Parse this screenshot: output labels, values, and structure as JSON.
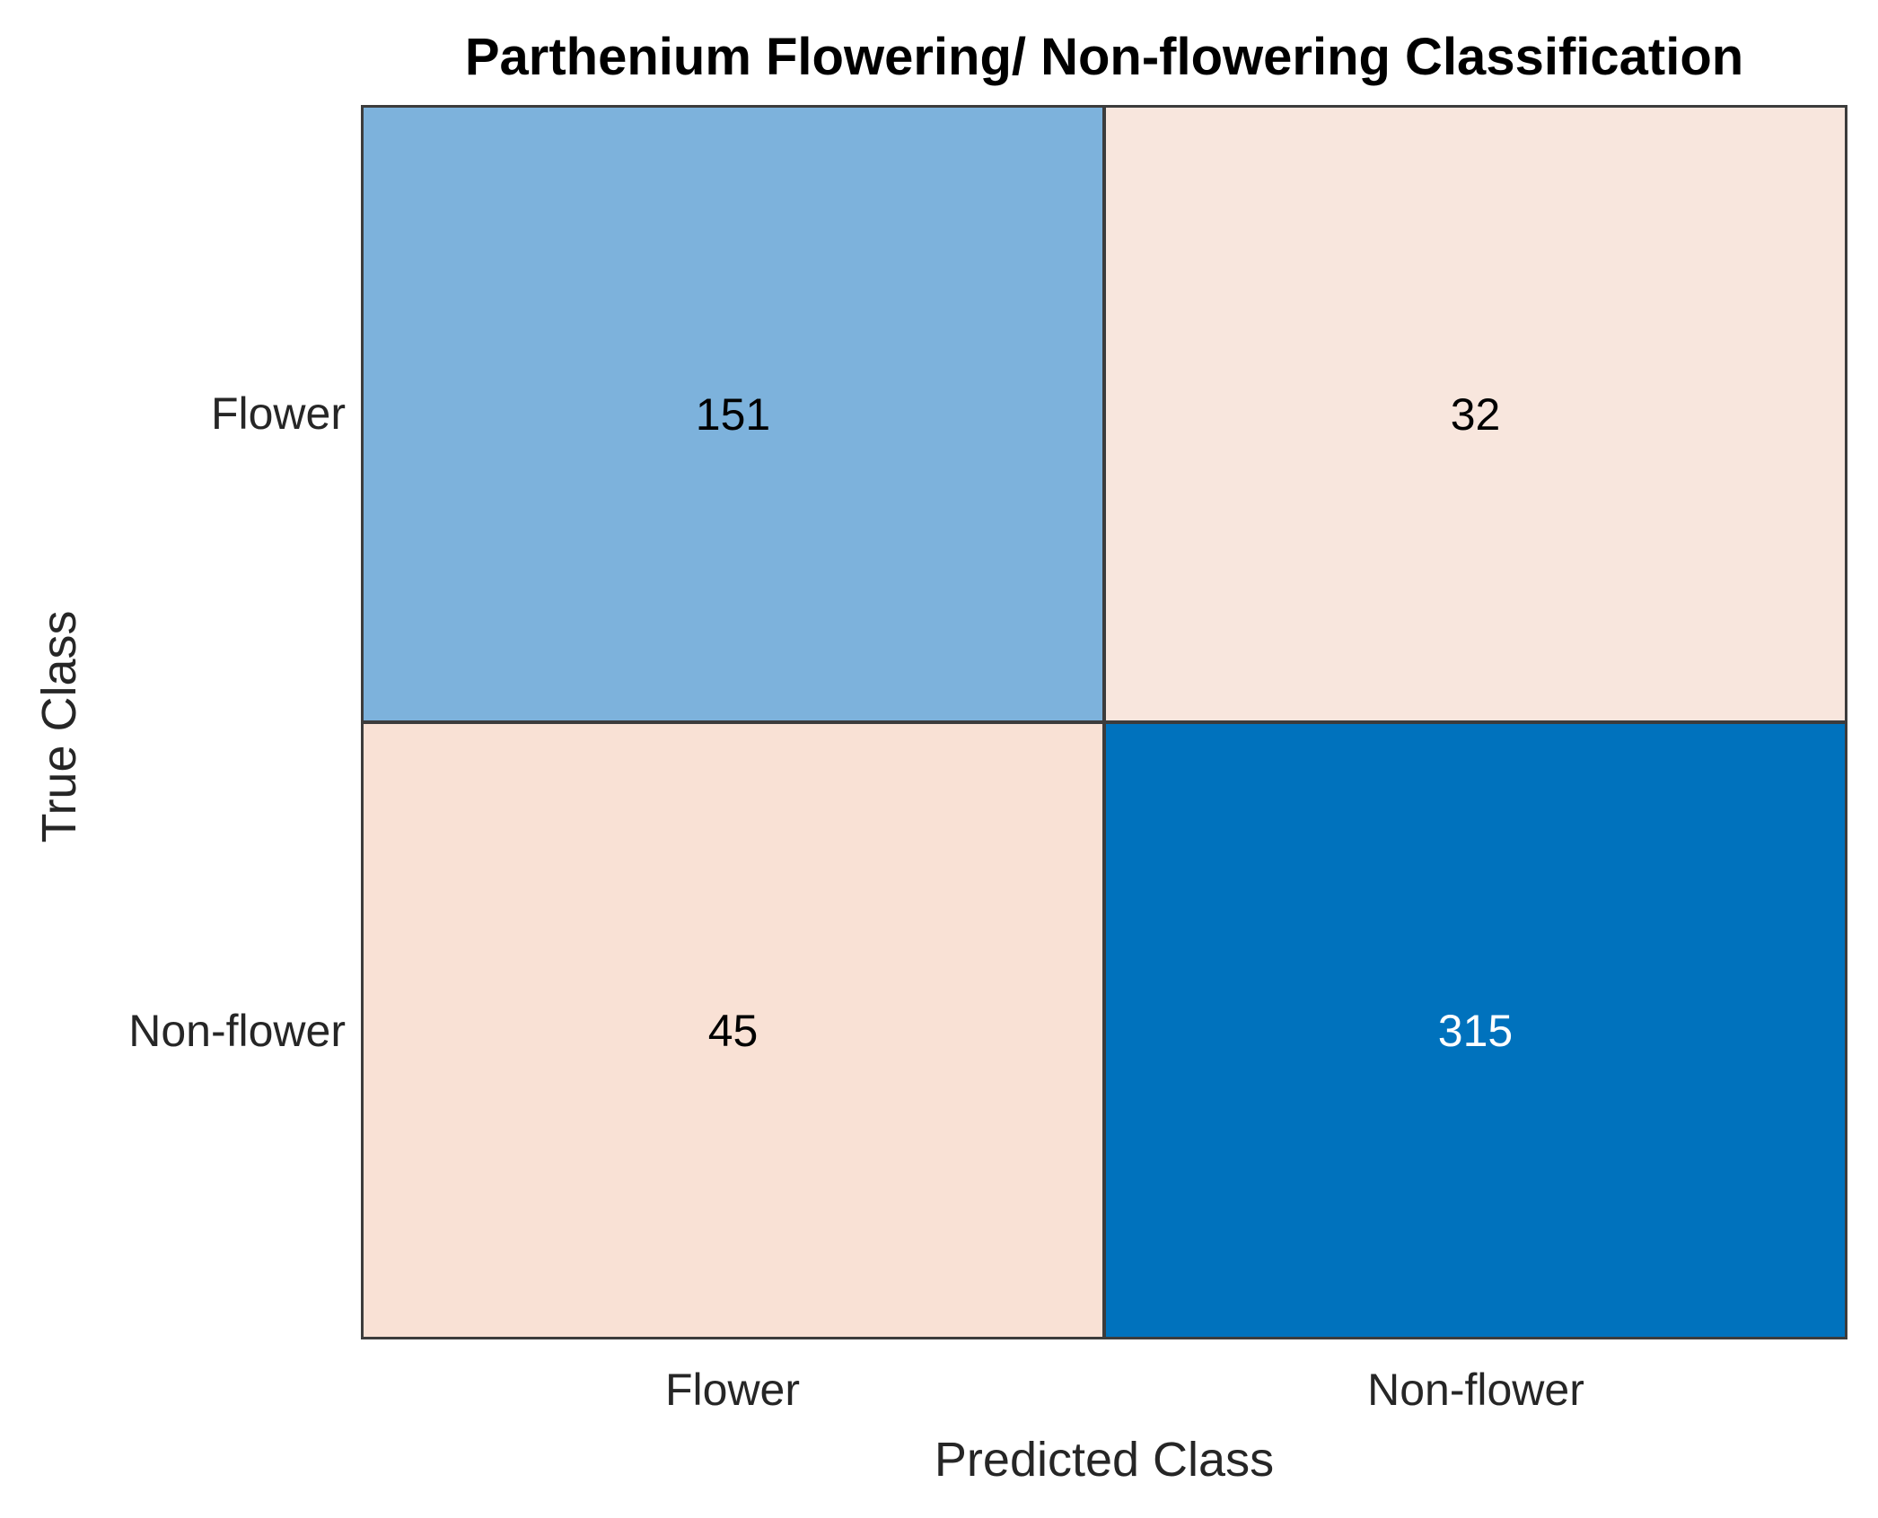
{
  "chart_data": {
    "type": "heatmap",
    "subtype": "confusion_matrix",
    "title": "Parthenium Flowering/ Non-flowering Classification",
    "xlabel": "Predicted Class",
    "ylabel": "True Class",
    "x_categories": [
      "Flower",
      "Non-flower"
    ],
    "y_categories": [
      "Flower",
      "Non-flower"
    ],
    "matrix": [
      [
        151,
        32
      ],
      [
        45,
        315
      ]
    ],
    "legend": "none",
    "grid": "on",
    "colors": {
      "cells": [
        [
          "#7DB2DC",
          "#F8E6DD"
        ],
        [
          "#F9E1D5",
          "#0072BD"
        ]
      ],
      "cell_text": [
        [
          "#000000",
          "#000000"
        ],
        [
          "#000000",
          "#FFFFFF"
        ]
      ],
      "grid_line": "#3C3C3C",
      "label_text": "#262626",
      "title_text": "#000000",
      "background": "#FFFFFF"
    }
  }
}
